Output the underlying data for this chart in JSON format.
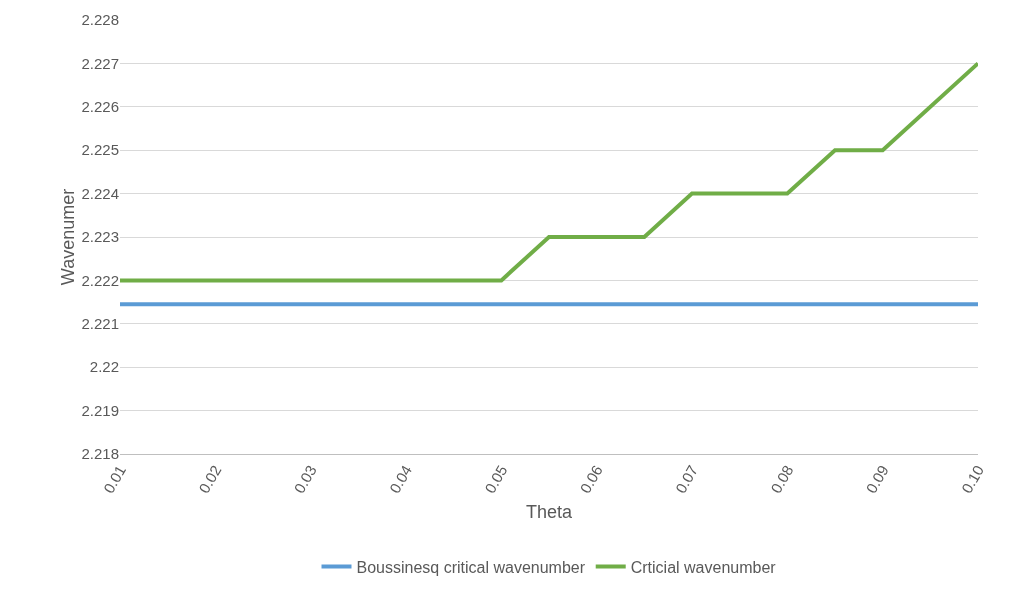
{
  "chart_data": {
    "type": "line",
    "xlabel": "Theta",
    "ylabel": "Wavenumer",
    "xlim": [
      0.01,
      0.1
    ],
    "xticks": [
      0.01,
      0.02,
      0.03,
      0.04,
      0.05,
      0.06,
      0.07,
      0.08,
      0.09,
      {
        "value": 0.1,
        "label": "0.10"
      }
    ],
    "ylim": [
      2.218,
      2.228
    ],
    "yticks": [
      2.218,
      2.219,
      2.22,
      2.221,
      2.222,
      2.223,
      2.224,
      2.225,
      2.226,
      2.227,
      2.228
    ],
    "grid": "y",
    "legend": "bottom",
    "marker": "none",
    "line_style": "solid",
    "series": [
      {
        "name": "Boussinesq critical wavenumber",
        "color": "#5b9bd5",
        "x": [
          0.01,
          0.1
        ],
        "values": [
          2.22145,
          2.22145
        ]
      },
      {
        "name": "Crticial wavenumber",
        "color": "#70ad47",
        "x": [
          0.01,
          0.05,
          0.055,
          0.065,
          0.07,
          0.08,
          0.085,
          0.09,
          0.1
        ],
        "values": [
          2.222,
          2.222,
          2.223,
          2.223,
          2.224,
          2.224,
          2.225,
          2.225,
          2.227
        ]
      }
    ]
  }
}
